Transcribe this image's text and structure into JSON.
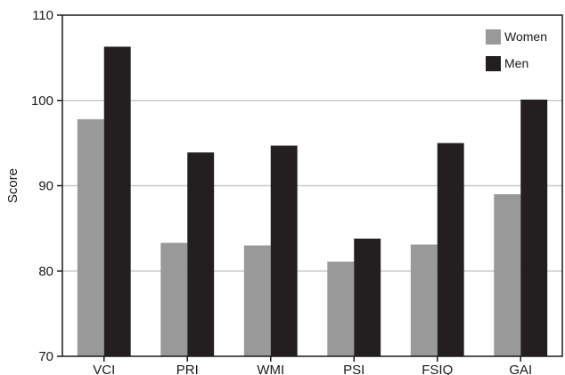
{
  "chart_data": {
    "type": "bar",
    "title": "",
    "xlabel": "",
    "ylabel": "Score",
    "ylim": [
      70,
      110
    ],
    "yticks": [
      70,
      80,
      90,
      100,
      110
    ],
    "grid": true,
    "legend_position": "top-right",
    "categories": [
      "VCI",
      "PRI",
      "WMI",
      "PSI",
      "FSIQ",
      "GAI"
    ],
    "series": [
      {
        "name": "Women",
        "color": "#999999",
        "values": [
          97.8,
          83.3,
          83.0,
          81.1,
          83.1,
          89.0
        ]
      },
      {
        "name": "Men",
        "color": "#231f20",
        "values": [
          106.3,
          93.9,
          94.7,
          83.8,
          95.0,
          100.1
        ]
      }
    ]
  }
}
